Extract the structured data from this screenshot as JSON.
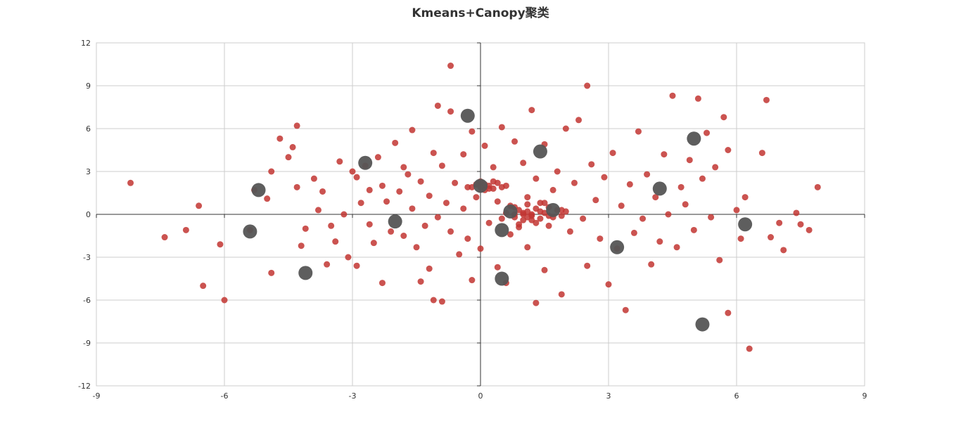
{
  "chart_data": {
    "type": "scatter",
    "title": "Kmeans+Canopy聚类",
    "xlim": [
      -9,
      9
    ],
    "ylim": [
      -12,
      12
    ],
    "x_ticks": [
      -9,
      -6,
      -3,
      0,
      3,
      6,
      9
    ],
    "y_ticks": [
      -12,
      -9,
      -6,
      -3,
      0,
      3,
      6,
      9,
      12
    ],
    "grid": true,
    "legend": "none",
    "colors": {
      "points": "#c23531",
      "centers": "#555555",
      "grid": "#cccccc",
      "axis": "#333333"
    },
    "series": [
      {
        "values": [
          [
            -8.2,
            2.2
          ],
          [
            -7.4,
            -1.6
          ],
          [
            -6.9,
            -1.1
          ],
          [
            -6.6,
            0.6
          ],
          [
            -6.5,
            -5.0
          ],
          [
            -6.1,
            -2.1
          ],
          [
            -6.0,
            -6.0
          ],
          [
            -5.4,
            -1.1
          ],
          [
            -5.3,
            1.7
          ],
          [
            -5.0,
            1.1
          ],
          [
            -4.9,
            3.0
          ],
          [
            -4.9,
            -4.1
          ],
          [
            -4.7,
            5.3
          ],
          [
            -4.5,
            4.0
          ],
          [
            -4.4,
            4.7
          ],
          [
            -4.3,
            6.2
          ],
          [
            -4.3,
            1.9
          ],
          [
            -4.2,
            -2.2
          ],
          [
            -4.1,
            -1.0
          ],
          [
            -3.9,
            2.5
          ],
          [
            -3.8,
            0.3
          ],
          [
            -3.7,
            1.6
          ],
          [
            -3.6,
            -3.5
          ],
          [
            -3.5,
            -0.8
          ],
          [
            -3.4,
            -1.9
          ],
          [
            -3.3,
            3.7
          ],
          [
            -3.2,
            0.0
          ],
          [
            -3.1,
            -3.0
          ],
          [
            -3.0,
            3.0
          ],
          [
            -2.9,
            -3.6
          ],
          [
            -2.9,
            2.6
          ],
          [
            -2.8,
            0.8
          ],
          [
            -2.7,
            3.4
          ],
          [
            -2.6,
            1.7
          ],
          [
            -2.6,
            -0.7
          ],
          [
            -2.5,
            -2.0
          ],
          [
            -2.4,
            4.0
          ],
          [
            -2.3,
            -4.8
          ],
          [
            -2.3,
            2.0
          ],
          [
            -2.2,
            0.9
          ],
          [
            -2.1,
            -1.2
          ],
          [
            -2.0,
            5.0
          ],
          [
            -1.9,
            1.6
          ],
          [
            -1.8,
            3.3
          ],
          [
            -1.8,
            -1.5
          ],
          [
            -1.7,
            2.8
          ],
          [
            -1.6,
            5.9
          ],
          [
            -1.6,
            0.4
          ],
          [
            -1.5,
            -2.3
          ],
          [
            -1.4,
            -4.7
          ],
          [
            -1.4,
            2.3
          ],
          [
            -1.3,
            -0.8
          ],
          [
            -1.2,
            1.3
          ],
          [
            -1.2,
            -3.8
          ],
          [
            -1.1,
            4.3
          ],
          [
            -1.1,
            -6.0
          ],
          [
            -1.0,
            7.6
          ],
          [
            -1.0,
            -0.2
          ],
          [
            -0.9,
            3.4
          ],
          [
            -0.9,
            -6.1
          ],
          [
            -0.8,
            0.8
          ],
          [
            -0.7,
            7.2
          ],
          [
            -0.7,
            10.4
          ],
          [
            -0.7,
            -1.2
          ],
          [
            -0.6,
            2.2
          ],
          [
            -0.5,
            -2.8
          ],
          [
            -0.4,
            4.2
          ],
          [
            -0.4,
            0.4
          ],
          [
            -0.3,
            -1.7
          ],
          [
            -0.3,
            1.9
          ],
          [
            -0.2,
            5.8
          ],
          [
            -0.2,
            -4.6
          ],
          [
            -0.1,
            1.2
          ],
          [
            0.0,
            2.3
          ],
          [
            0.0,
            -2.4
          ],
          [
            0.1,
            4.8
          ],
          [
            0.2,
            1.8
          ],
          [
            0.2,
            -0.6
          ],
          [
            0.3,
            3.3
          ],
          [
            0.4,
            -3.7
          ],
          [
            0.4,
            0.9
          ],
          [
            0.5,
            6.1
          ],
          [
            0.5,
            -0.3
          ],
          [
            0.6,
            -4.8
          ],
          [
            0.6,
            2.0
          ],
          [
            0.7,
            -1.4
          ],
          [
            0.8,
            5.1
          ],
          [
            0.8,
            0.5
          ],
          [
            0.9,
            -0.9
          ],
          [
            1.0,
            3.6
          ],
          [
            1.0,
            0.0
          ],
          [
            1.1,
            -2.3
          ],
          [
            1.1,
            1.2
          ],
          [
            1.2,
            7.3
          ],
          [
            1.2,
            -0.4
          ],
          [
            1.3,
            -6.2
          ],
          [
            1.3,
            2.5
          ],
          [
            1.4,
            0.8
          ],
          [
            1.5,
            4.9
          ],
          [
            1.5,
            -3.9
          ],
          [
            1.6,
            -0.8
          ],
          [
            1.7,
            1.7
          ],
          [
            1.8,
            3.0
          ],
          [
            1.9,
            -5.6
          ],
          [
            1.9,
            0.3
          ],
          [
            2.0,
            6.0
          ],
          [
            2.1,
            -1.2
          ],
          [
            2.2,
            2.2
          ],
          [
            2.3,
            6.6
          ],
          [
            2.4,
            -0.3
          ],
          [
            2.5,
            9.0
          ],
          [
            2.5,
            -3.6
          ],
          [
            2.6,
            3.5
          ],
          [
            2.7,
            1.0
          ],
          [
            2.8,
            -1.7
          ],
          [
            2.9,
            2.6
          ],
          [
            3.0,
            -4.9
          ],
          [
            3.1,
            4.3
          ],
          [
            3.2,
            -2.4
          ],
          [
            3.3,
            0.6
          ],
          [
            3.4,
            -6.7
          ],
          [
            3.5,
            2.1
          ],
          [
            3.6,
            -1.3
          ],
          [
            3.7,
            5.8
          ],
          [
            3.8,
            -0.3
          ],
          [
            3.9,
            2.8
          ],
          [
            4.0,
            -3.5
          ],
          [
            4.1,
            1.2
          ],
          [
            4.2,
            -1.9
          ],
          [
            4.3,
            4.2
          ],
          [
            4.4,
            0.0
          ],
          [
            4.5,
            8.3
          ],
          [
            4.6,
            -2.3
          ],
          [
            4.7,
            1.9
          ],
          [
            4.8,
            0.7
          ],
          [
            4.9,
            3.8
          ],
          [
            5.0,
            -1.1
          ],
          [
            5.1,
            8.1
          ],
          [
            5.2,
            2.5
          ],
          [
            5.3,
            5.7
          ],
          [
            5.4,
            -0.2
          ],
          [
            5.5,
            3.3
          ],
          [
            5.6,
            -3.2
          ],
          [
            5.7,
            6.8
          ],
          [
            5.8,
            4.5
          ],
          [
            5.8,
            -6.9
          ],
          [
            6.0,
            0.3
          ],
          [
            6.1,
            -1.7
          ],
          [
            6.2,
            1.2
          ],
          [
            6.3,
            -9.4
          ],
          [
            6.6,
            4.3
          ],
          [
            6.7,
            8.0
          ],
          [
            6.8,
            -1.6
          ],
          [
            7.0,
            -0.6
          ],
          [
            7.1,
            -2.5
          ],
          [
            7.4,
            0.1
          ],
          [
            7.5,
            -0.7
          ],
          [
            7.7,
            -1.1
          ],
          [
            7.9,
            1.9
          ],
          [
            0.0,
            1.9
          ],
          [
            0.1,
            2.1
          ],
          [
            0.2,
            2.0
          ],
          [
            0.3,
            1.8
          ],
          [
            -0.1,
            2.1
          ],
          [
            0.1,
            1.7
          ],
          [
            0.4,
            2.2
          ],
          [
            -0.2,
            1.9
          ],
          [
            0.3,
            2.3
          ],
          [
            0.5,
            1.9
          ],
          [
            0.6,
            0.1
          ],
          [
            0.8,
            -0.2
          ],
          [
            0.9,
            0.3
          ],
          [
            1.0,
            -0.4
          ],
          [
            1.1,
            0.2
          ],
          [
            1.2,
            -0.1
          ],
          [
            1.3,
            0.4
          ],
          [
            1.4,
            -0.3
          ],
          [
            1.5,
            0.1
          ],
          [
            1.6,
            0.5
          ],
          [
            1.7,
            -0.2
          ],
          [
            1.8,
            0.3
          ],
          [
            1.9,
            -0.1
          ],
          [
            2.0,
            0.2
          ],
          [
            0.7,
            0.6
          ],
          [
            0.9,
            -0.7
          ],
          [
            1.1,
            0.7
          ],
          [
            1.3,
            -0.6
          ],
          [
            1.5,
            0.8
          ],
          [
            1.2,
            0.0
          ],
          [
            1.0,
            0.1
          ],
          [
            0.8,
            0.0
          ],
          [
            1.4,
            0.2
          ],
          [
            1.6,
            -0.1
          ],
          [
            1.1,
            -0.2
          ]
        ]
      },
      {
        "values": [
          [
            -5.2,
            1.7
          ],
          [
            -5.4,
            -1.2
          ],
          [
            -4.1,
            -4.1
          ],
          [
            -2.7,
            3.6
          ],
          [
            -2.0,
            -0.5
          ],
          [
            -0.3,
            6.9
          ],
          [
            0.0,
            2.0
          ],
          [
            0.5,
            -1.1
          ],
          [
            0.7,
            0.2
          ],
          [
            0.5,
            -4.5
          ],
          [
            1.4,
            4.4
          ],
          [
            1.7,
            0.3
          ],
          [
            3.2,
            -2.3
          ],
          [
            4.2,
            1.8
          ],
          [
            5.0,
            5.3
          ],
          [
            5.2,
            -7.7
          ],
          [
            6.2,
            -0.7
          ]
        ]
      }
    ]
  }
}
